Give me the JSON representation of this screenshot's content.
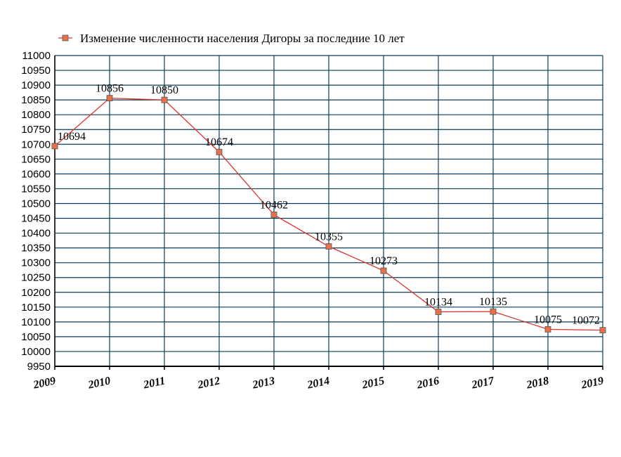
{
  "chart_data": {
    "type": "line",
    "legend": {
      "label": "Изменение численности населения Дигоры за последние 10 лет",
      "position": "top-left"
    },
    "x": [
      "2009",
      "2010",
      "2011",
      "2012",
      "2013",
      "2014",
      "2015",
      "2016",
      "2017",
      "2018",
      "2019"
    ],
    "series": [
      {
        "name": "Изменение численности населения Дигоры за последние 10 лет",
        "values": [
          10694,
          10856,
          10850,
          10674,
          10462,
          10355,
          10273,
          10134,
          10135,
          10075,
          10072
        ],
        "color": "#d9342b",
        "marker_color": "#e8704a"
      }
    ],
    "ylim": [
      9950,
      11000
    ],
    "ystep": 50,
    "yticks": [
      "9950",
      "10000",
      "10050",
      "10100",
      "10150",
      "10200",
      "10250",
      "10300",
      "10350",
      "10400",
      "10450",
      "10500",
      "10550",
      "10600",
      "10650",
      "10700",
      "10750",
      "10800",
      "10850",
      "10900",
      "10950",
      "11000"
    ],
    "grid": true,
    "grid_color": "#0b3d5a",
    "xlabel": "",
    "ylabel": "",
    "title": ""
  }
}
